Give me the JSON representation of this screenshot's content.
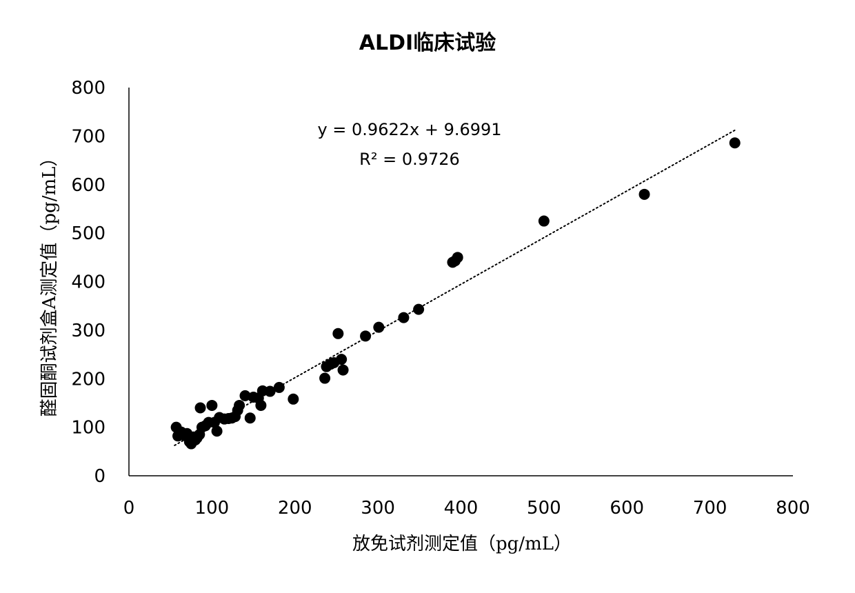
{
  "chart_data": {
    "type": "scatter",
    "title": "ALDI临床试验",
    "xlabel": "放免试剂测定值（pg/mL）",
    "ylabel": "醛固酮试剂盒A测定值（pg/mL）",
    "xlim": [
      0,
      800
    ],
    "ylim": [
      0,
      800
    ],
    "x_ticks": [
      "0",
      "100",
      "200",
      "300",
      "400",
      "500",
      "600",
      "700",
      "800"
    ],
    "y_ticks": [
      "0",
      "100",
      "200",
      "300",
      "400",
      "500",
      "600",
      "700",
      "800"
    ],
    "grid": false,
    "legend": "none",
    "marker_color": "#000000",
    "trendline": {
      "slope": 0.9622,
      "intercept": 9.6991,
      "x_range": [
        55,
        730
      ],
      "style": "dotted",
      "equation": "y = 0.9622x + 9.6991",
      "r_squared_label": "R² = 0.9726"
    },
    "points": [
      [
        57,
        100
      ],
      [
        59,
        82
      ],
      [
        63,
        90
      ],
      [
        67,
        83
      ],
      [
        70,
        87
      ],
      [
        73,
        70
      ],
      [
        75,
        66
      ],
      [
        76,
        73
      ],
      [
        78,
        80
      ],
      [
        80,
        74
      ],
      [
        82,
        78
      ],
      [
        85,
        85
      ],
      [
        86,
        140
      ],
      [
        88,
        100
      ],
      [
        92,
        103
      ],
      [
        96,
        110
      ],
      [
        100,
        145
      ],
      [
        103,
        110
      ],
      [
        106,
        92
      ],
      [
        109,
        120
      ],
      [
        115,
        117
      ],
      [
        120,
        118
      ],
      [
        124,
        119
      ],
      [
        128,
        122
      ],
      [
        131,
        135
      ],
      [
        133,
        145
      ],
      [
        140,
        165
      ],
      [
        146,
        119
      ],
      [
        150,
        162
      ],
      [
        156,
        160
      ],
      [
        159,
        145
      ],
      [
        161,
        175
      ],
      [
        170,
        174
      ],
      [
        181,
        182
      ],
      [
        198,
        158
      ],
      [
        236,
        201
      ],
      [
        238,
        225
      ],
      [
        243,
        230
      ],
      [
        247,
        233
      ],
      [
        252,
        293
      ],
      [
        256,
        240
      ],
      [
        258,
        218
      ],
      [
        285,
        288
      ],
      [
        301,
        306
      ],
      [
        331,
        326
      ],
      [
        349,
        343
      ],
      [
        390,
        440
      ],
      [
        393,
        443
      ],
      [
        396,
        450
      ],
      [
        500,
        525
      ],
      [
        621,
        580
      ],
      [
        730,
        686
      ]
    ]
  }
}
